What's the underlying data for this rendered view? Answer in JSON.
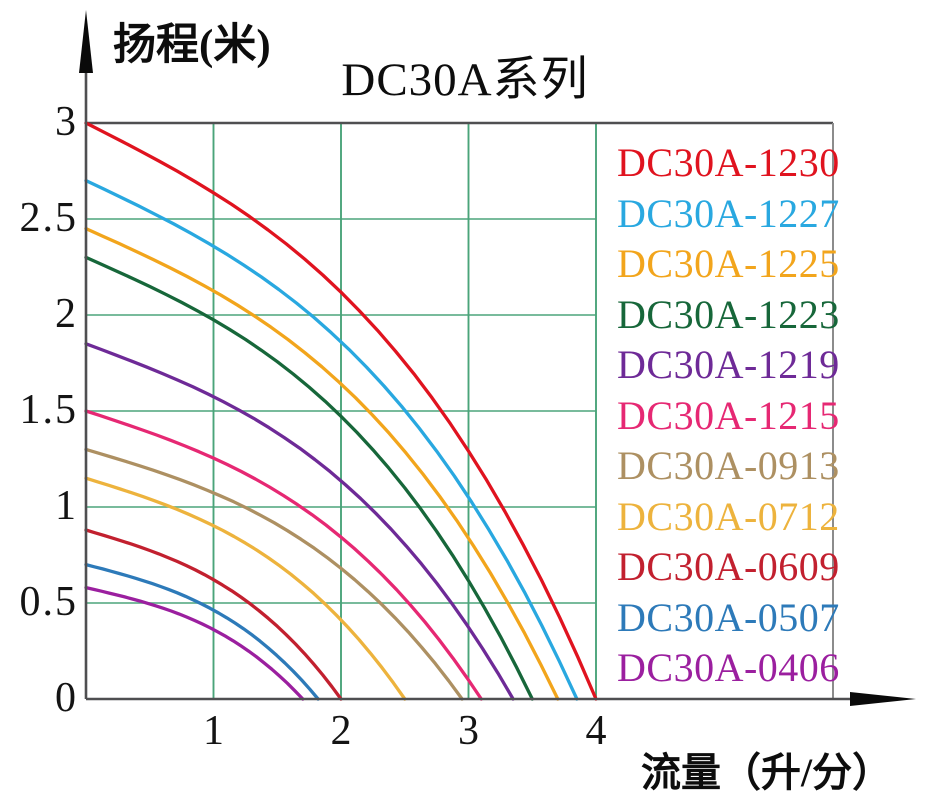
{
  "chart_data": {
    "type": "line",
    "title": "DC30A系列",
    "xlabel": "流量（升/分）",
    "ylabel": "扬程(米)",
    "xlim": [
      0,
      4
    ],
    "ylim": [
      0,
      3
    ],
    "grid": true,
    "legend_position": "right-inside",
    "x_ticks": [
      "1",
      "2",
      "3",
      "4"
    ],
    "y_ticks": [
      "3",
      "2.5",
      "2",
      "1.5",
      "1",
      "0.5",
      "0"
    ],
    "x_tick_values": [
      1,
      2,
      3,
      4
    ],
    "y_tick_values": [
      3,
      2.5,
      2,
      1.5,
      1,
      0.5,
      0
    ],
    "series": [
      {
        "name": "DC30A-1230",
        "color": "#e0131f",
        "max_head_m": 3.0,
        "max_flow_lpm": 4.0
      },
      {
        "name": "DC30A-1227",
        "color": "#29a8e0",
        "max_head_m": 2.7,
        "max_flow_lpm": 3.85
      },
      {
        "name": "DC30A-1225",
        "color": "#f2a51c",
        "max_head_m": 2.45,
        "max_flow_lpm": 3.7
      },
      {
        "name": "DC30A-1223",
        "color": "#17673a",
        "max_head_m": 2.3,
        "max_flow_lpm": 3.5
      },
      {
        "name": "DC30A-1219",
        "color": "#6e2a97",
        "max_head_m": 1.85,
        "max_flow_lpm": 3.35
      },
      {
        "name": "DC30A-1215",
        "color": "#e62873",
        "max_head_m": 1.5,
        "max_flow_lpm": 3.1
      },
      {
        "name": "DC30A-0913",
        "color": "#ad9062",
        "max_head_m": 1.3,
        "max_flow_lpm": 2.95
      },
      {
        "name": "DC30A-0712",
        "color": "#edb33d",
        "max_head_m": 1.15,
        "max_flow_lpm": 2.5
      },
      {
        "name": "DC30A-0609",
        "color": "#c2202f",
        "max_head_m": 0.88,
        "max_flow_lpm": 2.0
      },
      {
        "name": "DC30A-0507",
        "color": "#2d7ab9",
        "max_head_m": 0.7,
        "max_flow_lpm": 1.82
      },
      {
        "name": "DC30A-0406",
        "color": "#9b1f9f",
        "max_head_m": 0.58,
        "max_flow_lpm": 1.7
      }
    ]
  },
  "colors": {
    "grid_green": "#4aa47a",
    "axis_dark": "#4f4f51",
    "plot_right_border": "#8c8c8c",
    "arrow_black": "#0a0a0a",
    "text_black": "#111111"
  }
}
